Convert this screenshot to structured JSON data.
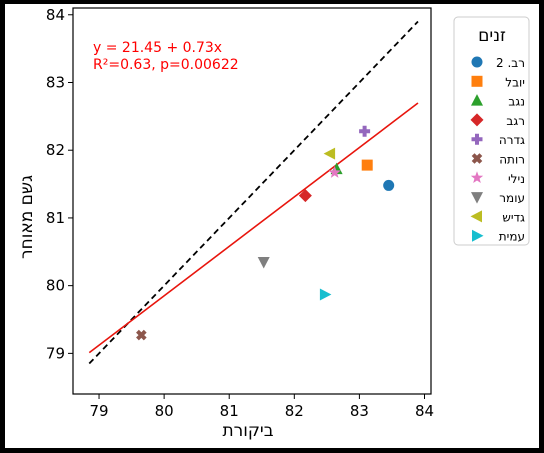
{
  "chart_data": {
    "type": "scatter",
    "xlabel": "ביקורת",
    "ylabel": "גשם מאוחר",
    "xlim": [
      78.6,
      84.1
    ],
    "ylim": [
      78.4,
      84.1
    ],
    "x_ticks": [
      "79",
      "80",
      "81",
      "82",
      "83",
      "84"
    ],
    "y_ticks": [
      "79",
      "80",
      "81",
      "82",
      "83",
      "84"
    ],
    "annotation": {
      "line1": "y = 21.45 + 0.73x",
      "line2": "R²=0.63, p=0.00622",
      "color": "#ff0000"
    },
    "legend": {
      "title": "זנים",
      "placement": "upper-right-outside"
    },
    "identity_line": {
      "x": [
        78.85,
        83.9
      ],
      "y": [
        78.85,
        83.9
      ],
      "style": "dashed",
      "color": "#000000"
    },
    "regression_line": {
      "x": [
        78.85,
        83.9
      ],
      "intercept": 21.45,
      "slope": 0.73,
      "color": "#e8150d"
    },
    "series": [
      {
        "name": "רב. 2",
        "x": 83.45,
        "y": 81.48,
        "marker": "circle",
        "color": "#1f77b4"
      },
      {
        "name": "יובל",
        "x": 83.12,
        "y": 81.78,
        "marker": "square",
        "color": "#ff7f0e"
      },
      {
        "name": "נגב",
        "x": 82.65,
        "y": 81.72,
        "marker": "triangle-up",
        "color": "#2ca02c"
      },
      {
        "name": "רגב",
        "x": 82.17,
        "y": 81.33,
        "marker": "diamond",
        "color": "#d62728"
      },
      {
        "name": "גדרה",
        "x": 83.08,
        "y": 82.28,
        "marker": "plus",
        "color": "#9467bd"
      },
      {
        "name": "רותה",
        "x": 79.65,
        "y": 79.27,
        "marker": "x",
        "color": "#8c564b"
      },
      {
        "name": "נילי",
        "x": 82.62,
        "y": 81.67,
        "marker": "star",
        "color": "#e377c2"
      },
      {
        "name": "עומר",
        "x": 81.53,
        "y": 80.35,
        "marker": "triangle-down",
        "color": "#7f7f7f"
      },
      {
        "name": "גדיש",
        "x": 82.55,
        "y": 81.95,
        "marker": "triangle-left",
        "color": "#bcbd22"
      },
      {
        "name": "עמית",
        "x": 82.47,
        "y": 79.87,
        "marker": "triangle-right",
        "color": "#17becf"
      }
    ]
  }
}
